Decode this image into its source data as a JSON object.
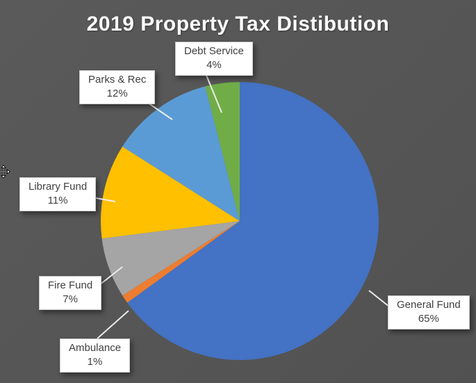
{
  "chart_data": {
    "type": "pie",
    "title": "2019 Property Tax Distibution",
    "direction": "clockwise",
    "start_angle_deg": 0,
    "legend_position": "none",
    "labels_style": "external-callout-boxes",
    "background_color": "#565656",
    "slices": [
      {
        "label": "General Fund",
        "value": 65,
        "percent_label": "65%",
        "color": "#4472C4"
      },
      {
        "label": "Ambulance",
        "value": 1,
        "percent_label": "1%",
        "color": "#ED7D31"
      },
      {
        "label": "Fire Fund",
        "value": 7,
        "percent_label": "7%",
        "color": "#A5A5A5"
      },
      {
        "label": "Library Fund",
        "value": 11,
        "percent_label": "11%",
        "color": "#FFC000"
      },
      {
        "label": "Parks & Rec",
        "value": 12,
        "percent_label": "12%",
        "color": "#5B9BD5"
      },
      {
        "label": "Debt Service",
        "value": 4,
        "percent_label": "4%",
        "color": "#70AD47"
      }
    ],
    "callout_leader_color": "#ececec"
  },
  "icons": {
    "cursor": "move-cursor"
  }
}
